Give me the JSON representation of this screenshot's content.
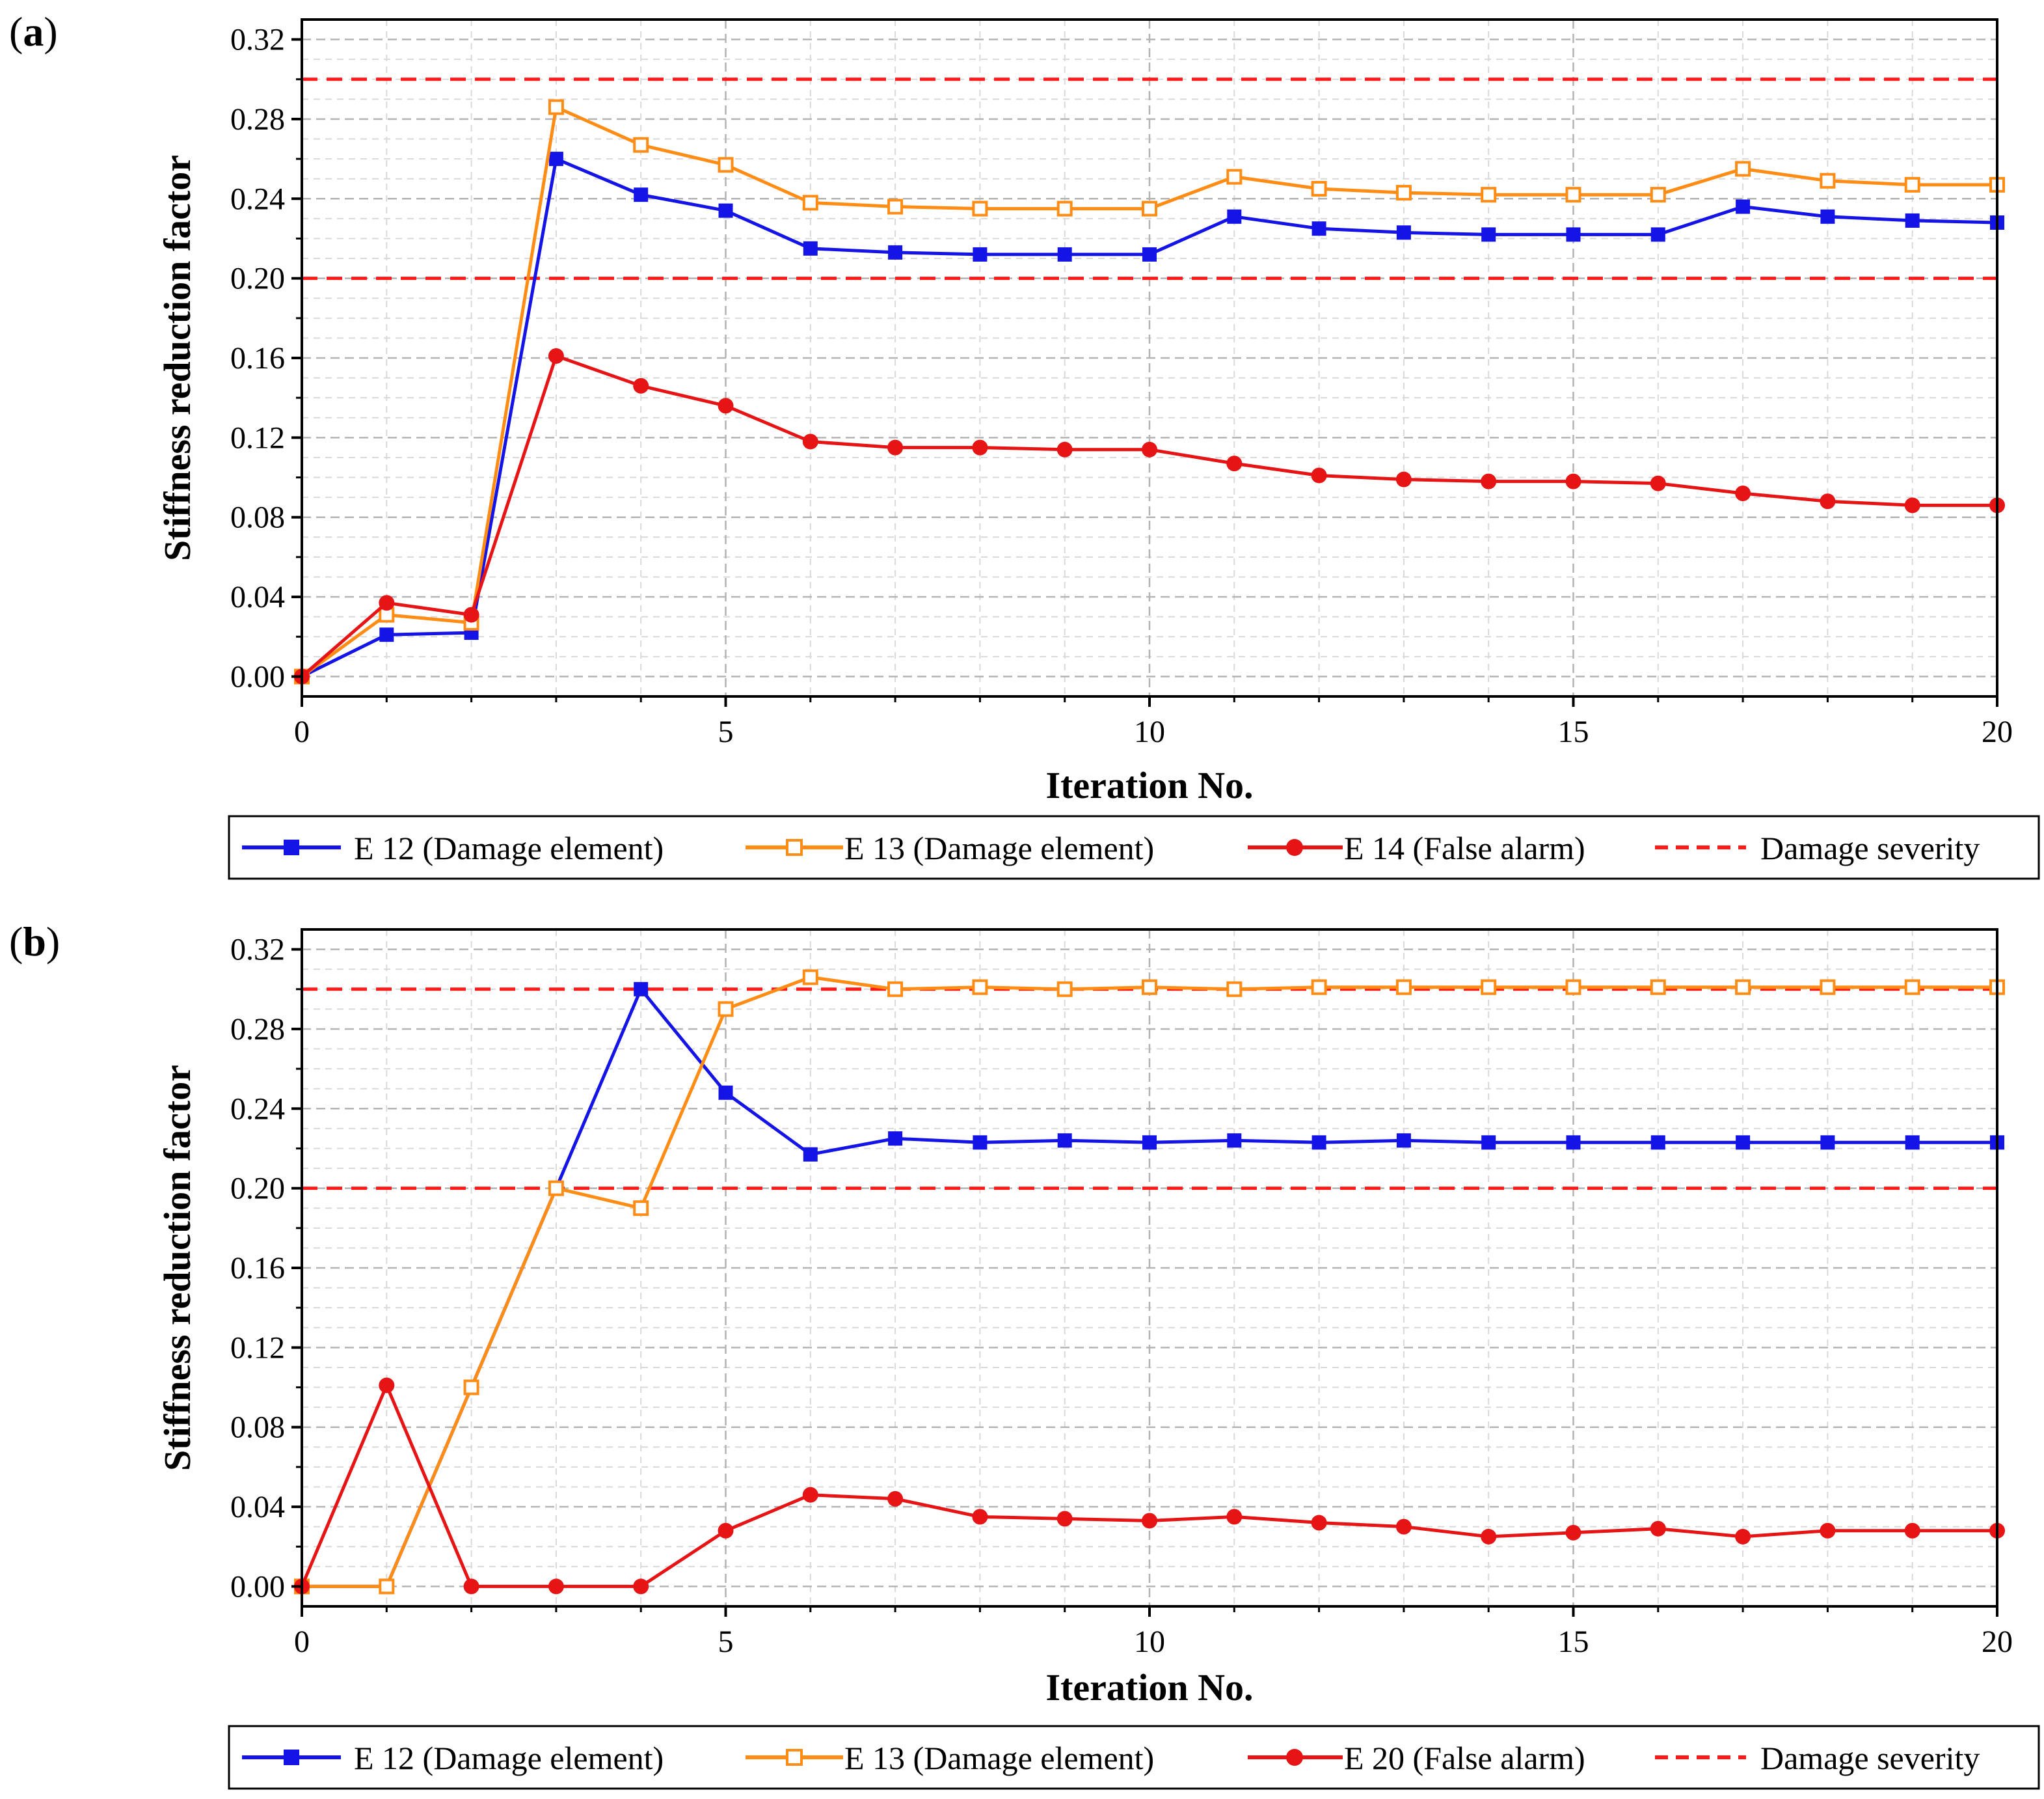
{
  "colors": {
    "e12": "#1414e6",
    "e13": "#ff8c14",
    "e_false": "#e61414",
    "severity": "#ff1a1a",
    "grid": "#b4b4b4",
    "minor_grid": "#d9d9d9"
  },
  "chart_data": [
    {
      "type": "line",
      "panel_letter": "a",
      "xlabel": "Iteration No.",
      "ylabel": "Stiffness reduction factor",
      "xlim": [
        0,
        20
      ],
      "ylim": [
        -0.01,
        0.33
      ],
      "x_ticks": [
        "0",
        "5",
        "10",
        "15",
        "20"
      ],
      "y_ticks": [
        "0.00",
        "0.04",
        "0.08",
        "0.12",
        "0.16",
        "0.20",
        "0.24",
        "0.28",
        "0.32"
      ],
      "grid": true,
      "legend_position": "bottom",
      "x": [
        0,
        1,
        2,
        3,
        4,
        5,
        6,
        7,
        8,
        9,
        10,
        11,
        12,
        13,
        14,
        15,
        16,
        17,
        18,
        19,
        20
      ],
      "series": [
        {
          "key": "e12",
          "name": "E 12 (Damage element)",
          "marker": "filled-square",
          "values": [
            0.0,
            0.021,
            0.022,
            0.26,
            0.242,
            0.234,
            0.215,
            0.213,
            0.212,
            0.212,
            0.212,
            0.231,
            0.225,
            0.223,
            0.222,
            0.222,
            0.222,
            0.236,
            0.231,
            0.229,
            0.228
          ]
        },
        {
          "key": "e13",
          "name": "E 13 (Damage element)",
          "marker": "open-square",
          "values": [
            0.0,
            0.031,
            0.027,
            0.286,
            0.267,
            0.257,
            0.238,
            0.236,
            0.235,
            0.235,
            0.235,
            0.251,
            0.245,
            0.243,
            0.242,
            0.242,
            0.242,
            0.255,
            0.249,
            0.247,
            0.247
          ]
        },
        {
          "key": "e_false",
          "name": "E 14 (False alarm)",
          "marker": "filled-circle",
          "values": [
            0.0,
            0.037,
            0.031,
            0.161,
            0.146,
            0.136,
            0.118,
            0.115,
            0.115,
            0.114,
            0.114,
            0.107,
            0.101,
            0.099,
            0.098,
            0.098,
            0.097,
            0.092,
            0.088,
            0.086,
            0.086
          ]
        }
      ],
      "severity": {
        "name": "Damage severity",
        "values": [
          0.3,
          0.2
        ]
      }
    },
    {
      "type": "line",
      "panel_letter": "b",
      "xlabel": "Iteration No.",
      "ylabel": "Stiffness reduction factor",
      "xlim": [
        0,
        20
      ],
      "ylim": [
        -0.01,
        0.33
      ],
      "x_ticks": [
        "0",
        "5",
        "10",
        "15",
        "20"
      ],
      "y_ticks": [
        "0.00",
        "0.04",
        "0.08",
        "0.12",
        "0.16",
        "0.20",
        "0.24",
        "0.28",
        "0.32"
      ],
      "grid": true,
      "legend_position": "bottom",
      "x": [
        0,
        1,
        2,
        3,
        4,
        5,
        6,
        7,
        8,
        9,
        10,
        11,
        12,
        13,
        14,
        15,
        16,
        17,
        18,
        19,
        20
      ],
      "series": [
        {
          "key": "e12",
          "name": "E 12 (Damage element)",
          "marker": "filled-square",
          "values": [
            0.0,
            0.0,
            0.1,
            0.2,
            0.3,
            0.248,
            0.217,
            0.225,
            0.223,
            0.224,
            0.223,
            0.224,
            0.223,
            0.224,
            0.223,
            0.223,
            0.223,
            0.223,
            0.223,
            0.223,
            0.223
          ]
        },
        {
          "key": "e13",
          "name": "E 13 (Damage element)",
          "marker": "open-square",
          "values": [
            0.0,
            0.0,
            0.1,
            0.2,
            0.19,
            0.29,
            0.306,
            0.3,
            0.301,
            0.3,
            0.301,
            0.3,
            0.301,
            0.301,
            0.301,
            0.301,
            0.301,
            0.301,
            0.301,
            0.301,
            0.301
          ]
        },
        {
          "key": "e_false",
          "name": "E 20 (False alarm)",
          "marker": "filled-circle",
          "values": [
            0.0,
            0.101,
            0.0,
            0.0,
            0.0,
            0.028,
            0.046,
            0.044,
            0.035,
            0.034,
            0.033,
            0.035,
            0.032,
            0.03,
            0.025,
            0.027,
            0.029,
            0.025,
            0.028,
            0.028,
            0.028
          ]
        }
      ],
      "severity": {
        "name": "Damage severity",
        "values": [
          0.3,
          0.2
        ]
      }
    }
  ]
}
